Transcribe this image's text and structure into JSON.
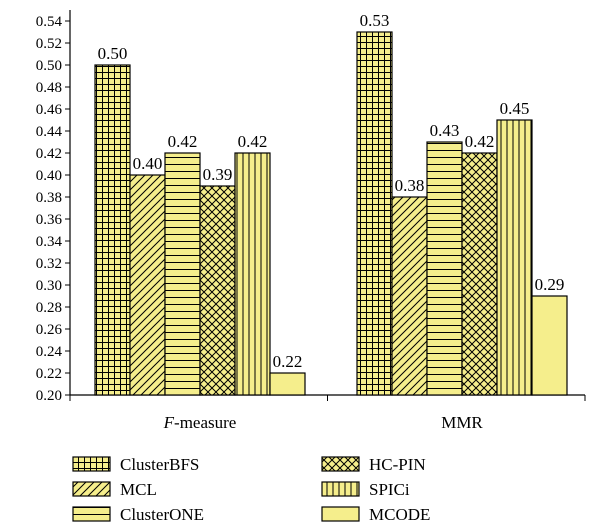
{
  "chart_data": {
    "type": "bar",
    "categories": [
      "F-measure",
      "MMR"
    ],
    "category_prefix": [
      "F",
      ""
    ],
    "category_suffix": [
      "-measure",
      "MMR"
    ],
    "series": [
      {
        "name": "ClusterBFS",
        "values": [
          0.5,
          0.53
        ],
        "labels": [
          "0.50",
          "0.53"
        ],
        "pattern": "grid"
      },
      {
        "name": "MCL",
        "values": [
          0.4,
          0.38
        ],
        "labels": [
          "0.40",
          "0.38"
        ],
        "pattern": "diagonal"
      },
      {
        "name": "ClusterONE",
        "values": [
          0.42,
          0.43
        ],
        "labels": [
          "0.42",
          "0.43"
        ],
        "pattern": "horizontal"
      },
      {
        "name": "HC-PIN",
        "values": [
          0.39,
          0.42
        ],
        "labels": [
          "0.39",
          "0.42"
        ],
        "pattern": "crosshatch"
      },
      {
        "name": "SPICi",
        "values": [
          0.42,
          0.45
        ],
        "labels": [
          "0.42",
          "0.45"
        ],
        "pattern": "vertical"
      },
      {
        "name": "MCODE",
        "values": [
          0.22,
          0.29
        ],
        "labels": [
          "0.22",
          "0.29"
        ],
        "pattern": "solid"
      }
    ],
    "ylim": [
      0.2,
      0.55
    ],
    "yticks": [
      "0.20",
      "0.22",
      "0.24",
      "0.26",
      "0.28",
      "0.30",
      "0.32",
      "0.34",
      "0.36",
      "0.38",
      "0.40",
      "0.42",
      "0.44",
      "0.46",
      "0.48",
      "0.50",
      "0.52",
      "0.54"
    ],
    "bar_fill": "#f5ee8c",
    "bar_stroke": "#000000",
    "legend_placement": "bottom",
    "grid": false,
    "title": "",
    "xlabel": "",
    "ylabel": ""
  }
}
